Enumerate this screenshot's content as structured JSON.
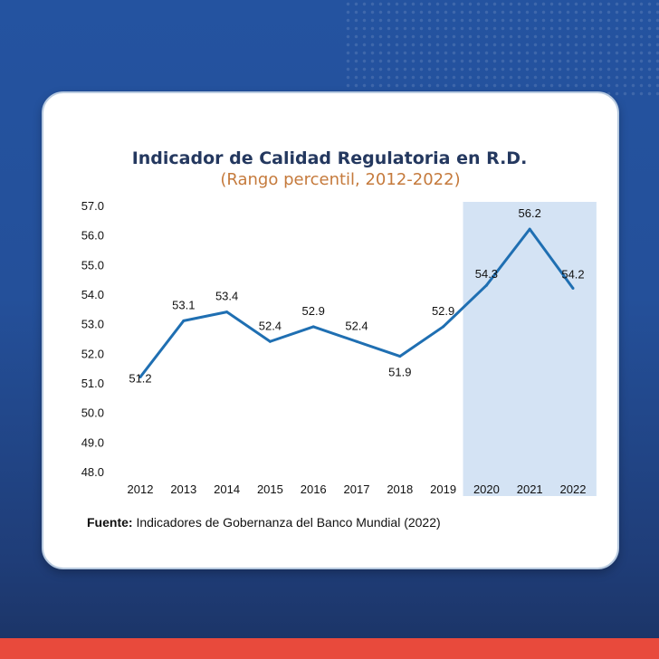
{
  "chart_data": {
    "type": "line",
    "title": "Indicador de Calidad Regulatoria en R.D.",
    "subtitle": "(Rango percentil, 2012-2022)",
    "categories": [
      "2012",
      "2013",
      "2014",
      "2015",
      "2016",
      "2017",
      "2018",
      "2019",
      "2020",
      "2021",
      "2022"
    ],
    "series": [
      {
        "name": "Calidad Regulatoria",
        "values": [
          51.2,
          53.1,
          53.4,
          52.4,
          52.9,
          52.4,
          51.9,
          52.9,
          54.3,
          56.2,
          54.2
        ]
      }
    ],
    "data_labels": [
      "51.2",
      "53.1",
      "53.4",
      "52.4",
      "52.9",
      "52.4",
      "51.9",
      "52.9",
      "54.3",
      "56.2",
      "54.2"
    ],
    "y_ticks": [
      "48.0",
      "49.0",
      "50.0",
      "51.0",
      "52.0",
      "53.0",
      "54.0",
      "55.0",
      "56.0",
      "57.0"
    ],
    "ylim": [
      48,
      57
    ],
    "highlight_range": [
      "2020",
      "2022"
    ],
    "grid": false,
    "xlabel": "",
    "ylabel": "",
    "colors": {
      "line": "#1f6fb2",
      "highlight": "#d4e3f4"
    }
  },
  "source": {
    "label": "Fuente:",
    "text": " Indicadores de Gobernanza del Banco Mundial (2022)"
  }
}
